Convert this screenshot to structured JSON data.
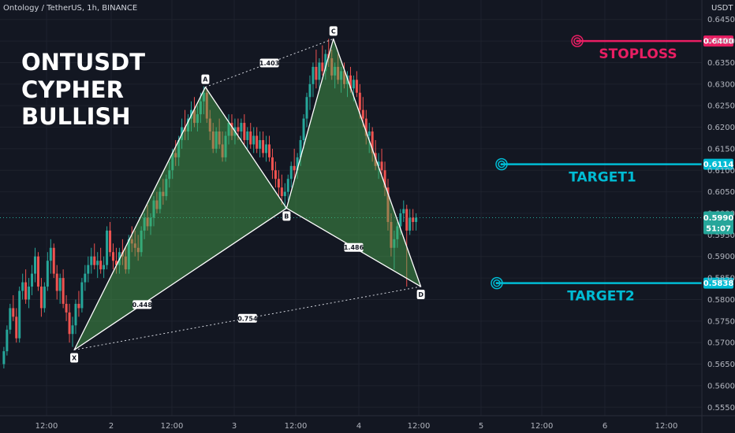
{
  "header": {
    "symbol": "Ontology / TetherUS, 1h, BINANCE",
    "currency": "USDT"
  },
  "title_lines": [
    "ONTUSDT",
    "CYPHER",
    "BULLISH"
  ],
  "colors": {
    "background": "#131722",
    "bull": "#26a69a",
    "bear": "#ef5350",
    "pattern_fill": "#4caf50",
    "stoploss": "#e91e63",
    "target": "#00bcd4"
  },
  "chart_data": {
    "type": "candlestick",
    "ylim": [
      0.5545,
      0.6455
    ],
    "y_ticks": [
      "0.6450",
      "0.6400",
      "0.6350",
      "0.6300",
      "0.6250",
      "0.6200",
      "0.6150",
      "0.6100",
      "0.6050",
      "0.6000",
      "0.5950",
      "0.5900",
      "0.5850",
      "0.5800",
      "0.5750",
      "0.5700",
      "0.5650",
      "0.5600",
      "0.5550"
    ],
    "x_ticks": [
      "12:00",
      "2",
      "12:00",
      "3",
      "12:00",
      "4",
      "12:00",
      "5",
      "12:00",
      "6",
      "12:00"
    ],
    "current_price": "0.5990",
    "countdown": "51:07",
    "pattern": {
      "name": "Cypher",
      "points": [
        {
          "label": "X",
          "t": 23,
          "price": 0.5683
        },
        {
          "label": "A",
          "t": 65,
          "price": 0.6293
        },
        {
          "label": "B",
          "t": 91,
          "price": 0.6012
        },
        {
          "label": "C",
          "t": 106,
          "price": 0.6405
        },
        {
          "label": "D",
          "t": 134,
          "price": 0.583
        }
      ],
      "ratios": [
        {
          "value": "1.403",
          "between": [
            "A",
            "C"
          ]
        },
        {
          "value": "0.448",
          "between": [
            "X",
            "B"
          ]
        },
        {
          "value": "1.486",
          "between": [
            "B",
            "D"
          ]
        },
        {
          "value": "0.754",
          "between": [
            "X",
            "D"
          ]
        }
      ]
    },
    "levels": [
      {
        "name": "STOPLOSS",
        "price": 0.64,
        "price_label": "0.6400",
        "color": "#e91e63"
      },
      {
        "name": "TARGET1",
        "price": 0.6114,
        "price_label": "0.6114",
        "color": "#00bcd4"
      },
      {
        "name": "TARGET2",
        "price": 0.5838,
        "price_label": "0.5838",
        "color": "#00bcd4"
      }
    ],
    "candles": [
      [
        0.565,
        0.569,
        0.564,
        0.568
      ],
      [
        0.568,
        0.574,
        0.567,
        0.573
      ],
      [
        0.573,
        0.579,
        0.572,
        0.578
      ],
      [
        0.578,
        0.581,
        0.575,
        0.576
      ],
      [
        0.576,
        0.578,
        0.57,
        0.571
      ],
      [
        0.571,
        0.583,
        0.57,
        0.582
      ],
      [
        0.582,
        0.586,
        0.58,
        0.584
      ],
      [
        0.584,
        0.587,
        0.579,
        0.58
      ],
      [
        0.58,
        0.585,
        0.578,
        0.583
      ],
      [
        0.583,
        0.588,
        0.581,
        0.586
      ],
      [
        0.586,
        0.592,
        0.584,
        0.59
      ],
      [
        0.59,
        0.591,
        0.582,
        0.583
      ],
      [
        0.583,
        0.585,
        0.576,
        0.578
      ],
      [
        0.578,
        0.584,
        0.577,
        0.583
      ],
      [
        0.583,
        0.591,
        0.582,
        0.589
      ],
      [
        0.589,
        0.594,
        0.586,
        0.592
      ],
      [
        0.592,
        0.593,
        0.585,
        0.586
      ],
      [
        0.586,
        0.588,
        0.58,
        0.582
      ],
      [
        0.582,
        0.586,
        0.579,
        0.585
      ],
      [
        0.585,
        0.587,
        0.578,
        0.579
      ],
      [
        0.579,
        0.581,
        0.575,
        0.577
      ],
      [
        0.577,
        0.579,
        0.57,
        0.572
      ],
      [
        0.572,
        0.576,
        0.569,
        0.574
      ],
      [
        0.574,
        0.58,
        0.572,
        0.579
      ],
      [
        0.579,
        0.582,
        0.576,
        0.578
      ],
      [
        0.578,
        0.585,
        0.577,
        0.584
      ],
      [
        0.584,
        0.588,
        0.582,
        0.586
      ],
      [
        0.586,
        0.59,
        0.584,
        0.588
      ],
      [
        0.588,
        0.592,
        0.586,
        0.59
      ],
      [
        0.59,
        0.593,
        0.587,
        0.588
      ],
      [
        0.588,
        0.591,
        0.585,
        0.589
      ],
      [
        0.589,
        0.592,
        0.586,
        0.587
      ],
      [
        0.587,
        0.59,
        0.585,
        0.588
      ],
      [
        0.588,
        0.597,
        0.587,
        0.596
      ],
      [
        0.596,
        0.598,
        0.59,
        0.591
      ],
      [
        0.591,
        0.593,
        0.587,
        0.589
      ],
      [
        0.589,
        0.592,
        0.586,
        0.588
      ],
      [
        0.588,
        0.592,
        0.586,
        0.591
      ],
      [
        0.591,
        0.594,
        0.588,
        0.59
      ],
      [
        0.59,
        0.592,
        0.586,
        0.587
      ],
      [
        0.587,
        0.595,
        0.586,
        0.594
      ],
      [
        0.594,
        0.597,
        0.591,
        0.593
      ],
      [
        0.593,
        0.596,
        0.59,
        0.592
      ],
      [
        0.592,
        0.595,
        0.589,
        0.591
      ],
      [
        0.591,
        0.597,
        0.59,
        0.596
      ],
      [
        0.596,
        0.6,
        0.594,
        0.599
      ],
      [
        0.599,
        0.602,
        0.596,
        0.597
      ],
      [
        0.597,
        0.6,
        0.595,
        0.599
      ],
      [
        0.599,
        0.604,
        0.597,
        0.603
      ],
      [
        0.603,
        0.605,
        0.6,
        0.601
      ],
      [
        0.601,
        0.606,
        0.6,
        0.605
      ],
      [
        0.605,
        0.608,
        0.602,
        0.604
      ],
      [
        0.604,
        0.609,
        0.603,
        0.608
      ],
      [
        0.608,
        0.612,
        0.606,
        0.61
      ],
      [
        0.61,
        0.615,
        0.608,
        0.614
      ],
      [
        0.614,
        0.617,
        0.611,
        0.613
      ],
      [
        0.613,
        0.618,
        0.611,
        0.617
      ],
      [
        0.617,
        0.622,
        0.615,
        0.62
      ],
      [
        0.62,
        0.624,
        0.617,
        0.619
      ],
      [
        0.619,
        0.623,
        0.617,
        0.622
      ],
      [
        0.622,
        0.626,
        0.619,
        0.624
      ],
      [
        0.624,
        0.627,
        0.62,
        0.621
      ],
      [
        0.621,
        0.625,
        0.619,
        0.623
      ],
      [
        0.623,
        0.628,
        0.621,
        0.626
      ],
      [
        0.626,
        0.6295,
        0.623,
        0.628
      ],
      [
        0.628,
        0.629,
        0.621,
        0.622
      ],
      [
        0.622,
        0.624,
        0.617,
        0.619
      ],
      [
        0.619,
        0.621,
        0.614,
        0.615
      ],
      [
        0.615,
        0.62,
        0.614,
        0.619
      ],
      [
        0.619,
        0.622,
        0.615,
        0.616
      ],
      [
        0.616,
        0.619,
        0.612,
        0.613
      ],
      [
        0.613,
        0.619,
        0.612,
        0.618
      ],
      [
        0.618,
        0.623,
        0.616,
        0.621
      ],
      [
        0.621,
        0.623,
        0.617,
        0.618
      ],
      [
        0.618,
        0.622,
        0.616,
        0.62
      ],
      [
        0.62,
        0.622,
        0.617,
        0.619
      ],
      [
        0.619,
        0.622,
        0.617,
        0.621
      ],
      [
        0.621,
        0.623,
        0.616,
        0.617
      ],
      [
        0.617,
        0.62,
        0.615,
        0.619
      ],
      [
        0.619,
        0.621,
        0.615,
        0.616
      ],
      [
        0.616,
        0.62,
        0.614,
        0.618
      ],
      [
        0.618,
        0.62,
        0.614,
        0.615
      ],
      [
        0.615,
        0.619,
        0.613,
        0.617
      ],
      [
        0.617,
        0.619,
        0.613,
        0.614
      ],
      [
        0.614,
        0.618,
        0.612,
        0.616
      ],
      [
        0.616,
        0.618,
        0.612,
        0.613
      ],
      [
        0.613,
        0.615,
        0.608,
        0.61
      ],
      [
        0.61,
        0.612,
        0.606,
        0.608
      ],
      [
        0.608,
        0.61,
        0.604,
        0.606
      ],
      [
        0.606,
        0.609,
        0.602,
        0.604
      ],
      [
        0.604,
        0.607,
        0.601,
        0.605
      ],
      [
        0.605,
        0.609,
        0.603,
        0.608
      ],
      [
        0.608,
        0.612,
        0.606,
        0.611
      ],
      [
        0.611,
        0.615,
        0.608,
        0.61
      ],
      [
        0.61,
        0.614,
        0.608,
        0.613
      ],
      [
        0.613,
        0.618,
        0.611,
        0.617
      ],
      [
        0.617,
        0.623,
        0.615,
        0.622
      ],
      [
        0.622,
        0.628,
        0.62,
        0.627
      ],
      [
        0.627,
        0.632,
        0.624,
        0.63
      ],
      [
        0.63,
        0.635,
        0.627,
        0.634
      ],
      [
        0.634,
        0.638,
        0.629,
        0.631
      ],
      [
        0.631,
        0.636,
        0.629,
        0.635
      ],
      [
        0.635,
        0.639,
        0.632,
        0.633
      ],
      [
        0.633,
        0.638,
        0.631,
        0.637
      ],
      [
        0.637,
        0.6405,
        0.634,
        0.636
      ],
      [
        0.636,
        0.638,
        0.631,
        0.632
      ],
      [
        0.632,
        0.635,
        0.629,
        0.634
      ],
      [
        0.634,
        0.637,
        0.63,
        0.631
      ],
      [
        0.631,
        0.634,
        0.628,
        0.633
      ],
      [
        0.633,
        0.635,
        0.629,
        0.63
      ],
      [
        0.63,
        0.633,
        0.627,
        0.632
      ],
      [
        0.632,
        0.634,
        0.628,
        0.629
      ],
      [
        0.629,
        0.632,
        0.626,
        0.631
      ],
      [
        0.631,
        0.633,
        0.627,
        0.628
      ],
      [
        0.628,
        0.63,
        0.622,
        0.624
      ],
      [
        0.624,
        0.627,
        0.62,
        0.622
      ],
      [
        0.622,
        0.624,
        0.616,
        0.618
      ],
      [
        0.618,
        0.621,
        0.614,
        0.619
      ],
      [
        0.619,
        0.62,
        0.612,
        0.614
      ],
      [
        0.614,
        0.617,
        0.61,
        0.611
      ],
      [
        0.611,
        0.614,
        0.608,
        0.612
      ],
      [
        0.612,
        0.615,
        0.609,
        0.61
      ],
      [
        0.61,
        0.612,
        0.604,
        0.606
      ],
      [
        0.606,
        0.608,
        0.596,
        0.598
      ],
      [
        0.598,
        0.6,
        0.59,
        0.592
      ],
      [
        0.592,
        0.596,
        0.587,
        0.594
      ],
      [
        0.594,
        0.598,
        0.592,
        0.597
      ],
      [
        0.597,
        0.601,
        0.595,
        0.6
      ],
      [
        0.6,
        0.603,
        0.598,
        0.601
      ],
      [
        0.601,
        0.602,
        0.583,
        0.596
      ],
      [
        0.596,
        0.601,
        0.595,
        0.599
      ],
      [
        0.599,
        0.601,
        0.596,
        0.598
      ],
      [
        0.598,
        0.6,
        0.596,
        0.599
      ]
    ]
  }
}
